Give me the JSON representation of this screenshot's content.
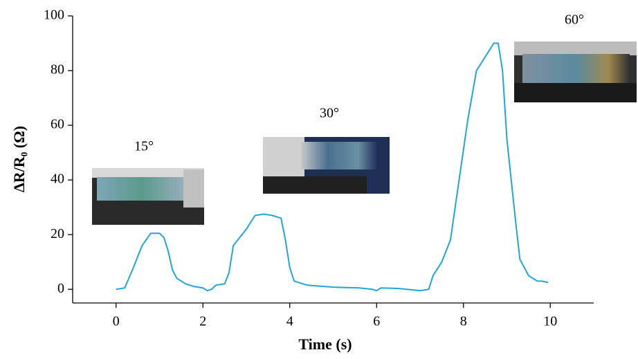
{
  "chart_data": {
    "type": "line",
    "x_label": "Time (s)",
    "y_label": "ΔR/R₀ (Ω)",
    "annotations": [
      "15°",
      "30°",
      "60°"
    ],
    "x": [
      0,
      0.2,
      0.4,
      0.6,
      0.8,
      1.0,
      1.1,
      1.2,
      1.3,
      1.4,
      1.6,
      1.8,
      2.0,
      2.1,
      2.2,
      2.3,
      2.5,
      2.6,
      2.7,
      2.8,
      3.0,
      3.2,
      3.4,
      3.6,
      3.8,
      3.9,
      4.0,
      4.1,
      4.4,
      5.0,
      5.6,
      5.9,
      6.0,
      6.1,
      6.5,
      7.0,
      7.2,
      7.3,
      7.5,
      7.7,
      7.9,
      8.1,
      8.3,
      8.5,
      8.7,
      8.8,
      8.9,
      9.0,
      9.2,
      9.3,
      9.5,
      9.7,
      9.8,
      9.95
    ],
    "series": [
      {
        "color": "#1ea6d6",
        "values": [
          0,
          0.5,
          8,
          16,
          20.5,
          20.5,
          19,
          14,
          7,
          4,
          2,
          1,
          0.5,
          -0.5,
          0,
          1.5,
          2,
          6,
          16,
          18,
          22,
          27,
          27.5,
          27,
          26,
          18,
          8,
          3,
          1.5,
          0.8,
          0.5,
          0,
          -0.5,
          0.5,
          0.3,
          -0.5,
          0,
          5,
          10,
          18,
          40,
          62,
          80,
          85,
          90,
          90,
          80,
          55,
          25,
          11,
          5,
          3,
          3,
          2.5
        ]
      }
    ],
    "xlim": [
      -1,
      11
    ],
    "ylim": [
      -5,
      100
    ],
    "xticks": [
      0,
      2,
      4,
      6,
      8,
      10
    ],
    "yticks": [
      0,
      20,
      40,
      60,
      80,
      100
    ]
  }
}
